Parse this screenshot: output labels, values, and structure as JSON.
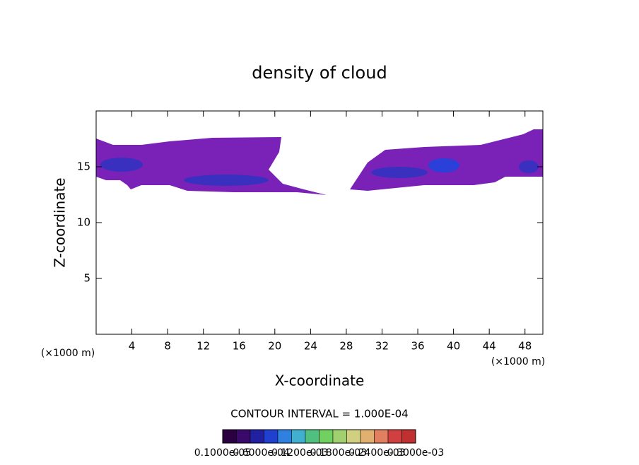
{
  "chart_data": {
    "type": "contour",
    "title": "density of cloud",
    "xlabel": "X-coordinate",
    "ylabel": "Z-coordinate",
    "x_unit_label": "(×1000 m)",
    "y_unit_label": "(×1000 m)",
    "xlim": [
      0,
      50
    ],
    "xticks": [
      4,
      8,
      12,
      16,
      20,
      24,
      28,
      32,
      36,
      40,
      44,
      48
    ],
    "ylim": [
      0,
      20
    ],
    "yticks": [
      5,
      10,
      15
    ],
    "contour_interval": "CONTOUR INTERVAL = 1.000E-04",
    "colorbar": {
      "colors": [
        "#2a0040",
        "#3a0a6a",
        "#2020a0",
        "#2040d0",
        "#3080e0",
        "#40b0d0",
        "#50c080",
        "#70d060",
        "#a0d070",
        "#d0d080",
        "#e0b070",
        "#e08060",
        "#d04040",
        "#c03030"
      ],
      "labels": [
        "0.1000e-05",
        "0.6000e-04",
        "0.1200e-03",
        "0.1800e-03",
        "0.2400e-03",
        "0.3000e-03"
      ]
    }
  }
}
